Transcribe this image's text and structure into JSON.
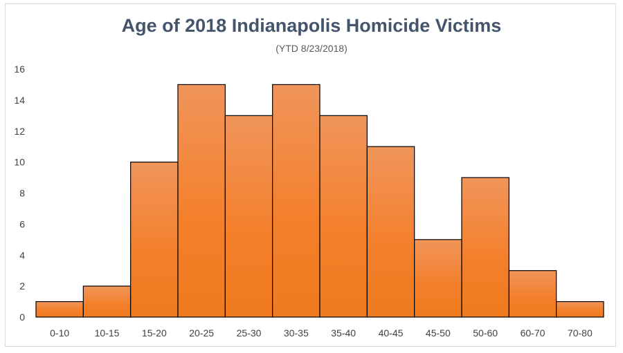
{
  "chart_data": {
    "type": "bar",
    "title": "Age of 2018 Indianapolis Homicide Victims",
    "subtitle": "(YTD 8/23/2018)",
    "categories": [
      "0-10",
      "10-15",
      "15-20",
      "20-25",
      "25-30",
      "30-35",
      "35-40",
      "40-45",
      "45-50",
      "50-60",
      "60-70",
      "70-80"
    ],
    "values": [
      1,
      2,
      10,
      15,
      13,
      15,
      13,
      11,
      5,
      9,
      3,
      1
    ],
    "xlabel": "",
    "ylabel": "",
    "ylim": [
      0,
      16
    ],
    "yticks": [
      0,
      2,
      4,
      6,
      8,
      10,
      12,
      14,
      16
    ],
    "grid": false,
    "legend": "none",
    "bar_gap": "none",
    "colors": {
      "bar_top": "#f0955a",
      "bar_bottom": "#f07a1e",
      "bar_edge": "#000000",
      "title": "#44546a",
      "frame": "#d9d9d9"
    }
  }
}
